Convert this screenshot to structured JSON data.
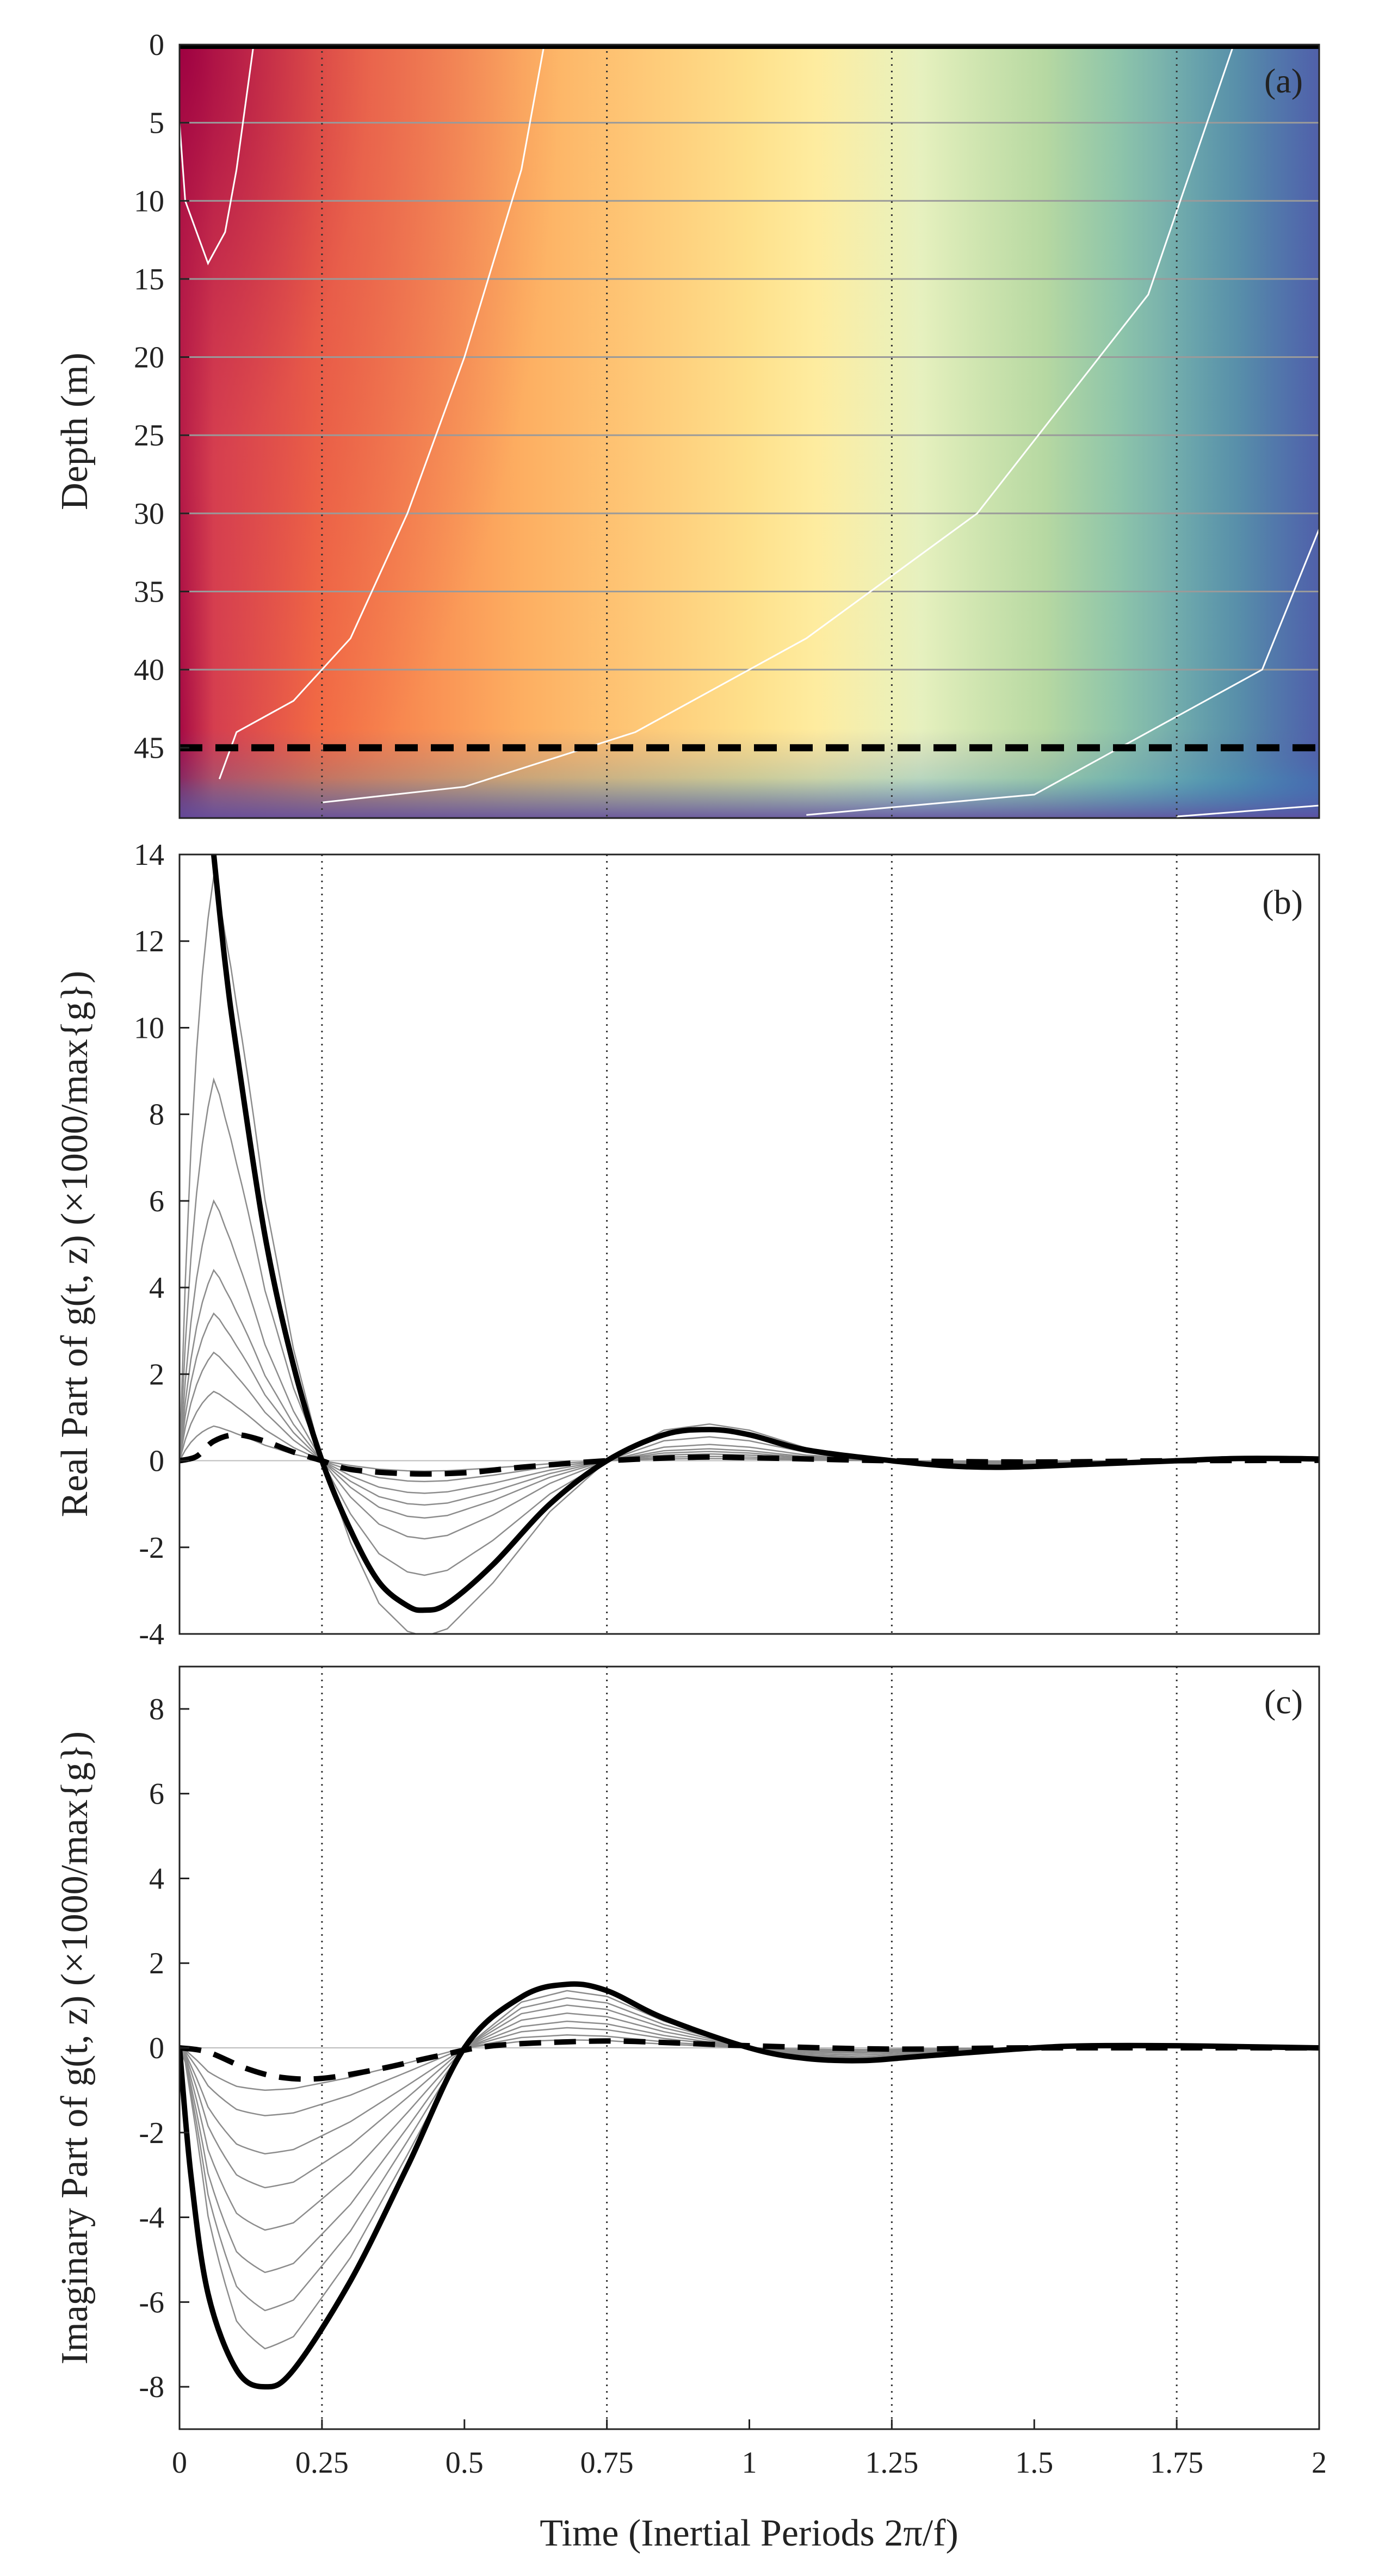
{
  "chart_data": [
    {
      "id": "a",
      "type": "heatmap",
      "panel_label": "(a)",
      "ylabel": "Depth (m)",
      "xlim": [
        0,
        2
      ],
      "ylim": [
        49.5,
        0
      ],
      "yticks": [
        "0",
        "5",
        "10",
        "15",
        "20",
        "25",
        "30",
        "35",
        "40",
        "45"
      ],
      "ytick_values": [
        0,
        5,
        10,
        15,
        20,
        25,
        30,
        35,
        40,
        45
      ],
      "grid_depths": [
        5,
        10,
        15,
        20,
        25,
        30,
        35,
        40
      ],
      "dashed_depth": 45,
      "vertical_guides": [
        0.25,
        0.75,
        1.25,
        1.75
      ],
      "colormap": [
        "#9e0142",
        "#d53e4f",
        "#f46d43",
        "#fdae61",
        "#fee08b",
        "#ffffbf",
        "#e6f598",
        "#abdda4",
        "#66c2a5",
        "#3288bd",
        "#5e4fa2"
      ],
      "contour_lines": [
        {
          "name": "contour-1",
          "points": [
            [
              0.0,
              5
            ],
            [
              0.01,
              10
            ],
            [
              0.05,
              14
            ],
            [
              0.08,
              12
            ],
            [
              0.1,
              8
            ],
            [
              0.13,
              0
            ]
          ]
        },
        {
          "name": "contour-2",
          "points": [
            [
              0.07,
              47
            ],
            [
              0.1,
              44
            ],
            [
              0.2,
              42
            ],
            [
              0.3,
              38
            ],
            [
              0.4,
              30
            ],
            [
              0.5,
              20
            ],
            [
              0.6,
              8
            ],
            [
              0.64,
              0
            ]
          ]
        },
        {
          "name": "contour-3",
          "points": [
            [
              0.25,
              48.5
            ],
            [
              0.5,
              47.5
            ],
            [
              0.8,
              44
            ],
            [
              1.1,
              38
            ],
            [
              1.4,
              30
            ],
            [
              1.7,
              16
            ],
            [
              1.85,
              0
            ]
          ]
        },
        {
          "name": "contour-4",
          "points": [
            [
              1.1,
              49.3
            ],
            [
              1.5,
              48
            ],
            [
              1.9,
              40
            ],
            [
              2.0,
              31
            ]
          ]
        },
        {
          "name": "contour-5",
          "points": [
            [
              1.75,
              49.4
            ],
            [
              2.0,
              48.7
            ]
          ]
        }
      ]
    },
    {
      "id": "b",
      "type": "line",
      "panel_label": "(b)",
      "ylabel": "Real Part of g(t, z) (×1000/max{g})",
      "xlim": [
        0,
        2
      ],
      "ylim": [
        -4,
        14
      ],
      "yticks": [
        "-4",
        "-2",
        "0",
        "2",
        "4",
        "6",
        "8",
        "10",
        "12",
        "14"
      ],
      "ytick_values": [
        -4,
        -2,
        0,
        2,
        4,
        6,
        8,
        10,
        12,
        14
      ],
      "vertical_guides": [
        0.25,
        0.75,
        1.25,
        1.75
      ],
      "thin_peaks": [
        0.8,
        1.6,
        2.5,
        3.4,
        4.4,
        6.0,
        8.8,
        13.5
      ],
      "series": [
        {
          "name": "surface",
          "style": "thick",
          "points": [
            [
              0.06,
              14
            ],
            [
              0.08,
              11.5
            ],
            [
              0.1,
              9.5
            ],
            [
              0.15,
              5.2
            ],
            [
              0.2,
              2.2
            ],
            [
              0.25,
              0
            ],
            [
              0.3,
              -1.6
            ],
            [
              0.35,
              -2.8
            ],
            [
              0.4,
              -3.35
            ],
            [
              0.43,
              -3.45
            ],
            [
              0.47,
              -3.3
            ],
            [
              0.55,
              -2.4
            ],
            [
              0.65,
              -1.0
            ],
            [
              0.75,
              0
            ],
            [
              0.85,
              0.6
            ],
            [
              0.93,
              0.72
            ],
            [
              1.0,
              0.6
            ],
            [
              1.1,
              0.25
            ],
            [
              1.25,
              0
            ],
            [
              1.35,
              -0.12
            ],
            [
              1.45,
              -0.15
            ],
            [
              1.6,
              -0.08
            ],
            [
              1.75,
              0
            ],
            [
              1.85,
              0.05
            ],
            [
              1.95,
              0.05
            ],
            [
              2.0,
              0.04
            ]
          ]
        },
        {
          "name": "depth-45m",
          "style": "dashed",
          "points": [
            [
              0,
              0
            ],
            [
              0.03,
              0.1
            ],
            [
              0.06,
              0.45
            ],
            [
              0.1,
              0.6
            ],
            [
              0.15,
              0.45
            ],
            [
              0.2,
              0.2
            ],
            [
              0.25,
              0
            ],
            [
              0.3,
              -0.2
            ],
            [
              0.4,
              -0.3
            ],
            [
              0.5,
              -0.28
            ],
            [
              0.6,
              -0.15
            ],
            [
              0.75,
              0
            ],
            [
              0.9,
              0.08
            ],
            [
              1.0,
              0.07
            ],
            [
              1.25,
              0
            ],
            [
              1.5,
              -0.03
            ],
            [
              1.75,
              0
            ],
            [
              2.0,
              0.01
            ]
          ]
        }
      ]
    },
    {
      "id": "c",
      "type": "line",
      "panel_label": "(c)",
      "ylabel": "Imaginary Part of g(t, z) (×1000/max{g})",
      "xlabel": "Time (Inertial Periods 2π/f)",
      "xlim": [
        0,
        2
      ],
      "ylim": [
        -9,
        9
      ],
      "yticks": [
        "-8",
        "-6",
        "-4",
        "-2",
        "0",
        "2",
        "4",
        "6",
        "8"
      ],
      "ytick_values": [
        -8,
        -6,
        -4,
        -2,
        0,
        2,
        4,
        6,
        8
      ],
      "xticks": [
        "0",
        "0.25",
        "0.5",
        "0.75",
        "1",
        "1.25",
        "1.5",
        "1.75",
        "2"
      ],
      "xtick_values": [
        0,
        0.25,
        0.5,
        0.75,
        1,
        1.25,
        1.5,
        1.75,
        2
      ],
      "vertical_guides": [
        0.25,
        0.75,
        1.25,
        1.75
      ],
      "thin_minima": [
        -1.0,
        -1.6,
        -2.5,
        -3.3,
        -4.3,
        -5.3,
        -6.2,
        -7.1
      ],
      "series": [
        {
          "name": "surface",
          "style": "thick",
          "points": [
            [
              0,
              0
            ],
            [
              0.02,
              -3.0
            ],
            [
              0.05,
              -5.8
            ],
            [
              0.1,
              -7.6
            ],
            [
              0.15,
              -8.0
            ],
            [
              0.2,
              -7.6
            ],
            [
              0.3,
              -5.5
            ],
            [
              0.4,
              -2.8
            ],
            [
              0.5,
              0
            ],
            [
              0.6,
              1.2
            ],
            [
              0.68,
              1.5
            ],
            [
              0.75,
              1.35
            ],
            [
              0.85,
              0.7
            ],
            [
              1.0,
              0
            ],
            [
              1.1,
              -0.25
            ],
            [
              1.2,
              -0.3
            ],
            [
              1.3,
              -0.2
            ],
            [
              1.5,
              0
            ],
            [
              1.6,
              0.05
            ],
            [
              1.75,
              0.05
            ],
            [
              1.9,
              0.02
            ],
            [
              2.0,
              0
            ]
          ]
        },
        {
          "name": "depth-45m",
          "style": "dashed",
          "points": [
            [
              0,
              0
            ],
            [
              0.05,
              -0.1
            ],
            [
              0.12,
              -0.5
            ],
            [
              0.18,
              -0.7
            ],
            [
              0.25,
              -0.72
            ],
            [
              0.35,
              -0.5
            ],
            [
              0.45,
              -0.2
            ],
            [
              0.55,
              0.05
            ],
            [
              0.7,
              0.15
            ],
            [
              0.8,
              0.15
            ],
            [
              1.0,
              0.05
            ],
            [
              1.25,
              -0.03
            ],
            [
              1.5,
              0
            ],
            [
              2.0,
              0
            ]
          ]
        }
      ]
    }
  ]
}
